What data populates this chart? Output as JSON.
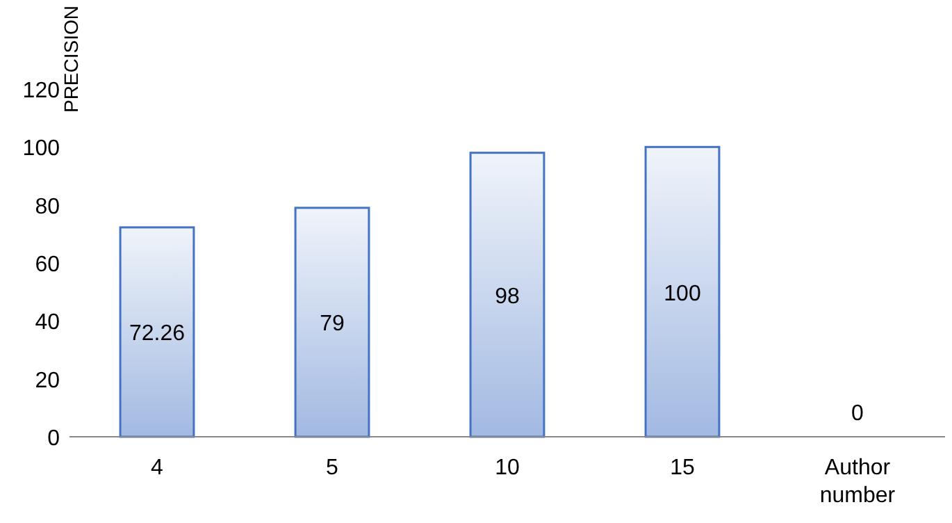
{
  "chart_data": {
    "type": "bar",
    "ylabel": "PRECISION",
    "categories": [
      "4",
      "5",
      "10",
      "15",
      "Author number"
    ],
    "values": [
      72.26,
      79,
      98,
      100,
      0
    ],
    "color": "#4472c4",
    "ylim": [
      0,
      120
    ],
    "yticks": [
      0,
      20,
      40,
      60,
      80,
      100,
      120
    ],
    "data_labels": true,
    "grid": false
  }
}
